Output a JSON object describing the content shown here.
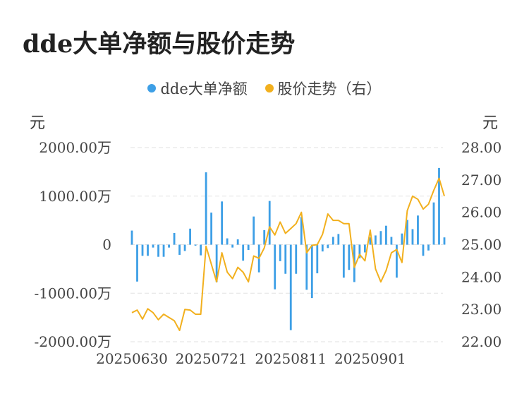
{
  "title": "dde大单净额与股价走势",
  "legend": {
    "series1": "dde大单净额",
    "series2": "股价走势（右）"
  },
  "units": {
    "left": "元",
    "right": "元"
  },
  "colors": {
    "bar": "#3d9fe6",
    "line": "#f2b01e",
    "grid": "#e2e2e2"
  },
  "chart_data": {
    "type": "bar",
    "title": "dde大单净额与股价走势",
    "x_tick_labels": [
      "20250630",
      "20250721",
      "20250811",
      "20250901"
    ],
    "left_axis": {
      "unit": "元",
      "ticks": [
        2000,
        1000,
        0,
        -1000,
        -2000
      ],
      "tick_labels": [
        "2000.00万",
        "1000.00万",
        "0",
        "-1000.00万",
        "-2000.00万"
      ],
      "ylim": [
        -2000,
        2000
      ]
    },
    "right_axis": {
      "unit": "元",
      "ticks": [
        28,
        27,
        26,
        25,
        24,
        23,
        22
      ],
      "tick_labels": [
        "28.00",
        "27.00",
        "26.00",
        "25.00",
        "24.00",
        "23.00",
        "22.00"
      ],
      "ylim": [
        22,
        28
      ]
    },
    "grid": true,
    "legend_position": "top-center",
    "series": [
      {
        "name": "dde大单净额",
        "type": "bar",
        "axis": "left",
        "values": [
          290,
          -760,
          -230,
          -230,
          -60,
          -250,
          -250,
          -60,
          240,
          -210,
          -130,
          330,
          -20,
          -220,
          1490,
          660,
          -770,
          890,
          130,
          -60,
          110,
          -330,
          -110,
          580,
          -570,
          300,
          900,
          -920,
          -340,
          -600,
          -1760,
          -600,
          570,
          -930,
          -1100,
          -590,
          -140,
          -70,
          160,
          220,
          -680,
          -520,
          -770,
          -280,
          -160,
          150,
          190,
          280,
          390,
          160,
          -680,
          230,
          510,
          320,
          600,
          -230,
          -120,
          870,
          1580,
          150
        ]
      },
      {
        "name": "股价走势（右）",
        "type": "line",
        "axis": "right",
        "values": [
          22.9,
          22.98,
          22.7,
          23.02,
          22.9,
          22.68,
          22.85,
          22.75,
          22.65,
          22.35,
          23.0,
          22.98,
          22.85,
          22.85,
          24.95,
          24.4,
          23.85,
          24.75,
          24.15,
          23.95,
          24.3,
          24.15,
          23.85,
          24.65,
          24.58,
          24.9,
          25.55,
          25.3,
          25.7,
          25.35,
          25.5,
          25.65,
          26.0,
          24.75,
          24.98,
          25.0,
          25.32,
          25.95,
          25.75,
          25.75,
          25.65,
          25.65,
          24.3,
          24.7,
          24.5,
          25.45,
          24.25,
          23.85,
          24.2,
          24.75,
          24.85,
          24.45,
          26.05,
          26.5,
          26.4,
          26.1,
          26.25,
          26.68,
          27.05,
          26.5
        ]
      }
    ]
  }
}
